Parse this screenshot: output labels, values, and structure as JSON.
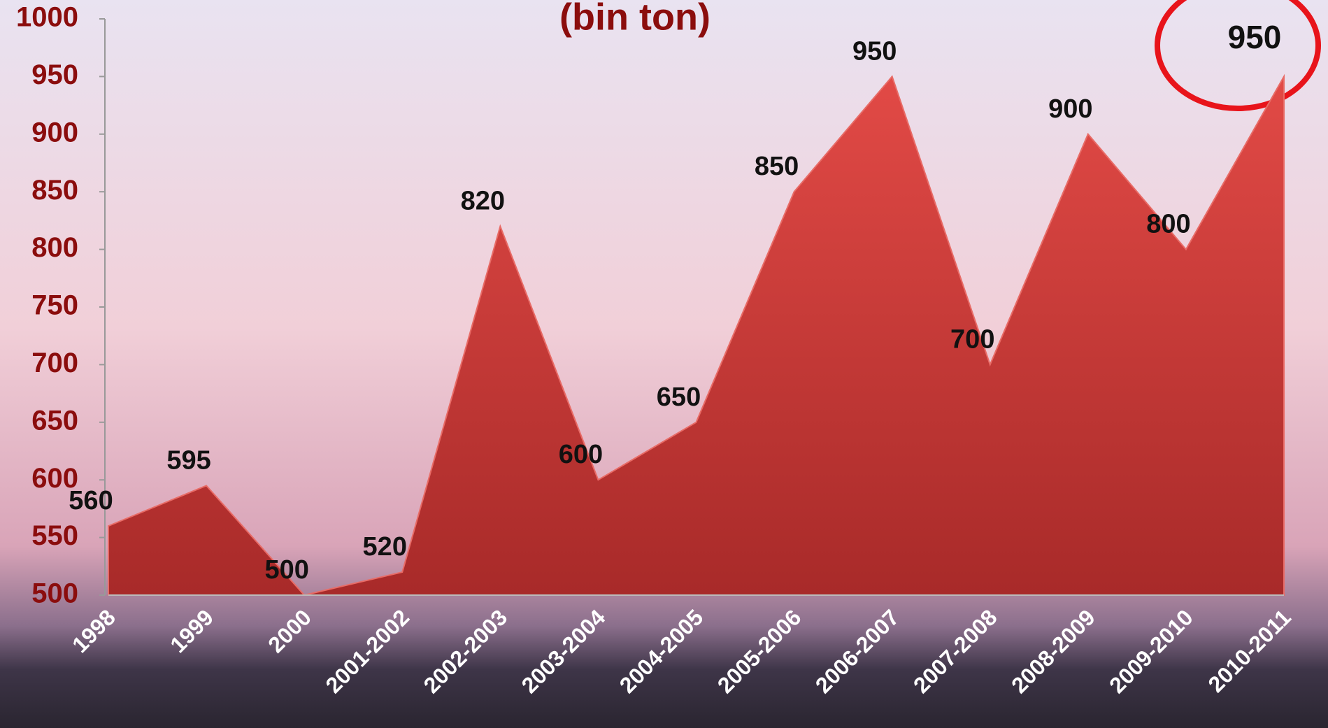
{
  "chart_data": {
    "type": "area",
    "title": "(bin ton)",
    "categories": [
      "1998",
      "1999",
      "2000",
      "2001-2002",
      "2002-2003",
      "2003-2004",
      "2004-2005",
      "2005-2006",
      "2006-2007",
      "2007-2008",
      "2008-2009",
      "2009-2010",
      "2010-2011"
    ],
    "values": [
      560,
      595,
      500,
      520,
      820,
      600,
      650,
      850,
      950,
      700,
      900,
      800,
      950
    ],
    "color": "#c0302e",
    "ylim": [
      500,
      1000
    ],
    "yticks": [
      500,
      550,
      600,
      650,
      700,
      750,
      800,
      850,
      900,
      950,
      1000
    ]
  }
}
